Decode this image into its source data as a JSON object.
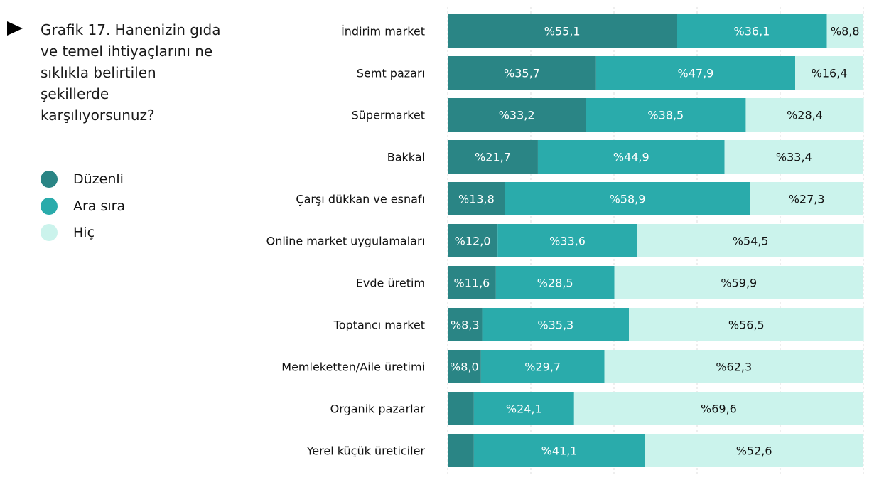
{
  "chart_data": {
    "type": "bar",
    "orientation": "horizontal",
    "stacked": "100%",
    "title": "Grafik 17. Hanenizin gıda ve temel ihtiyaçlarını ne sıklıkla belirtilen şekillerde karşılıyorsunuz?",
    "xlim": [
      0,
      100
    ],
    "grid": true,
    "legend_position": "left",
    "categories": [
      "İndirim market",
      "Semt pazarı",
      "Süpermarket",
      "Bakkal",
      "Çarşı dükkan ve esnafı",
      "Online market uygulamaları",
      "Evde üretim",
      "Toptancı market",
      "Memleketten/Aile üretimi",
      "Organik pazarlar",
      "Yerel küçük üreticiler"
    ],
    "series": [
      {
        "name": "Düzenli",
        "color": "#2a8585",
        "values": [
          55.1,
          35.7,
          33.2,
          21.7,
          13.8,
          12.0,
          11.6,
          8.3,
          8.0,
          6.3,
          6.3
        ],
        "labels": [
          "%55,1",
          "%35,7",
          "%33,2",
          "%21,7",
          "%13,8",
          "%12,0",
          "%11,6",
          "%8,3",
          "%8,0",
          null,
          null
        ]
      },
      {
        "name": "Ara sıra",
        "color": "#2aabab",
        "values": [
          36.1,
          47.9,
          38.5,
          44.9,
          58.9,
          33.6,
          28.5,
          35.3,
          29.7,
          24.1,
          41.1
        ],
        "labels": [
          "%36,1",
          "%47,9",
          "%38,5",
          "%44,9",
          "%58,9",
          "%33,6",
          "%28,5",
          "%35,3",
          "%29,7",
          "%24,1",
          "%41,1"
        ]
      },
      {
        "name": "Hiç",
        "color": "#cbf3ec",
        "values": [
          8.8,
          16.4,
          28.4,
          33.4,
          27.3,
          54.5,
          59.9,
          56.5,
          62.3,
          69.6,
          52.6
        ],
        "labels": [
          "%8,8",
          "%16,4",
          "%28,4",
          "%33,4",
          "%27,3",
          "%54,5",
          "%59,9",
          "%56,5",
          "%62,3",
          "%69,6",
          "%52,6"
        ]
      }
    ]
  }
}
